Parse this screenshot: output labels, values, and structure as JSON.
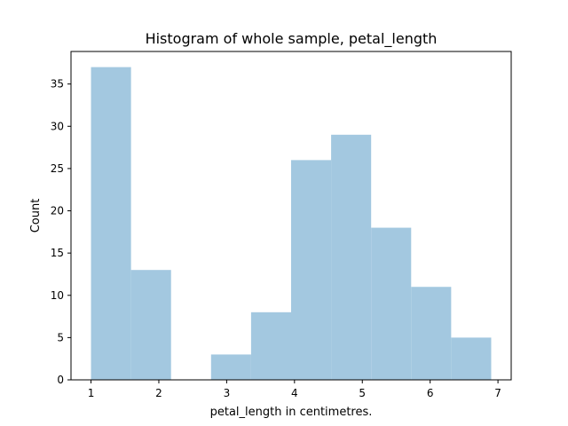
{
  "chart_data": {
    "type": "bar",
    "title": "Histogram of whole sample, petal_length",
    "xlabel": "petal_length in centimetres.",
    "ylabel": "Count",
    "bin_edges": [
      1.0,
      1.59,
      2.18,
      2.77,
      3.36,
      3.95,
      4.54,
      5.13,
      5.72,
      6.31,
      6.9
    ],
    "values": [
      37,
      13,
      0,
      3,
      8,
      26,
      29,
      18,
      11,
      5
    ],
    "xlim": [
      0.705,
      7.195
    ],
    "ylim": [
      0,
      38.85
    ],
    "xticks": [
      1,
      2,
      3,
      4,
      5,
      6,
      7
    ],
    "yticks": [
      0,
      5,
      10,
      15,
      20,
      25,
      30,
      35
    ],
    "bar_color": "#a3c8e0",
    "grid": false,
    "legend": false
  }
}
